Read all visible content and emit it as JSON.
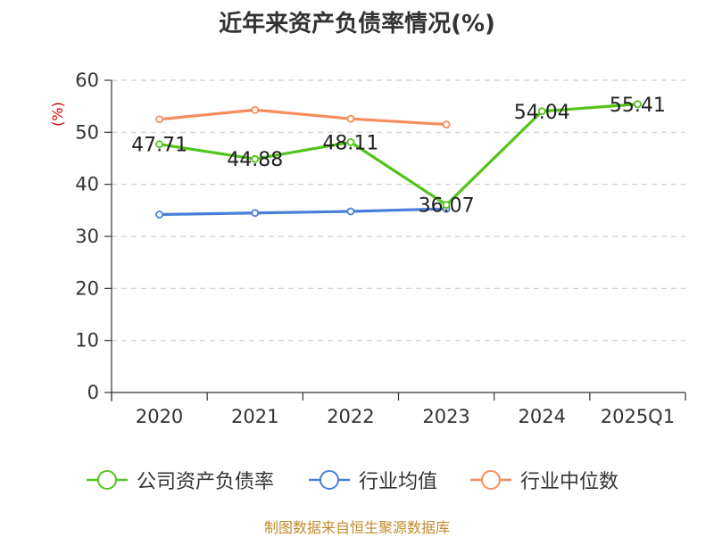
{
  "title": "近年来资产负债率情况(%)",
  "source": "制图数据来自恒生聚源数据库",
  "chart_data": {
    "type": "line",
    "title": "近年来资产负债率情况(%)",
    "xlabel": "",
    "ylabel": "(%)",
    "ylim": [
      0,
      60
    ],
    "yticks": [
      0,
      10,
      20,
      30,
      40,
      50,
      60
    ],
    "grid": true,
    "legend_position": "bottom",
    "categories": [
      "2020",
      "2021",
      "2022",
      "2023",
      "2024",
      "2025Q1"
    ],
    "series": [
      {
        "name": "公司资产负债率",
        "color": "#52c41a",
        "values": [
          47.71,
          44.88,
          48.11,
          36.07,
          54.04,
          55.41
        ],
        "labels": [
          "47.71",
          "44.88",
          "48.11",
          "36.07",
          "54.04",
          "55.41"
        ]
      },
      {
        "name": "行业均值",
        "color": "#4a7fd8",
        "values": [
          34.2,
          34.5,
          34.8,
          35.3,
          null,
          null
        ]
      },
      {
        "name": "行业中位数",
        "color": "#f78c5c",
        "values": [
          52.5,
          54.3,
          52.6,
          51.5,
          null,
          null
        ]
      }
    ]
  }
}
